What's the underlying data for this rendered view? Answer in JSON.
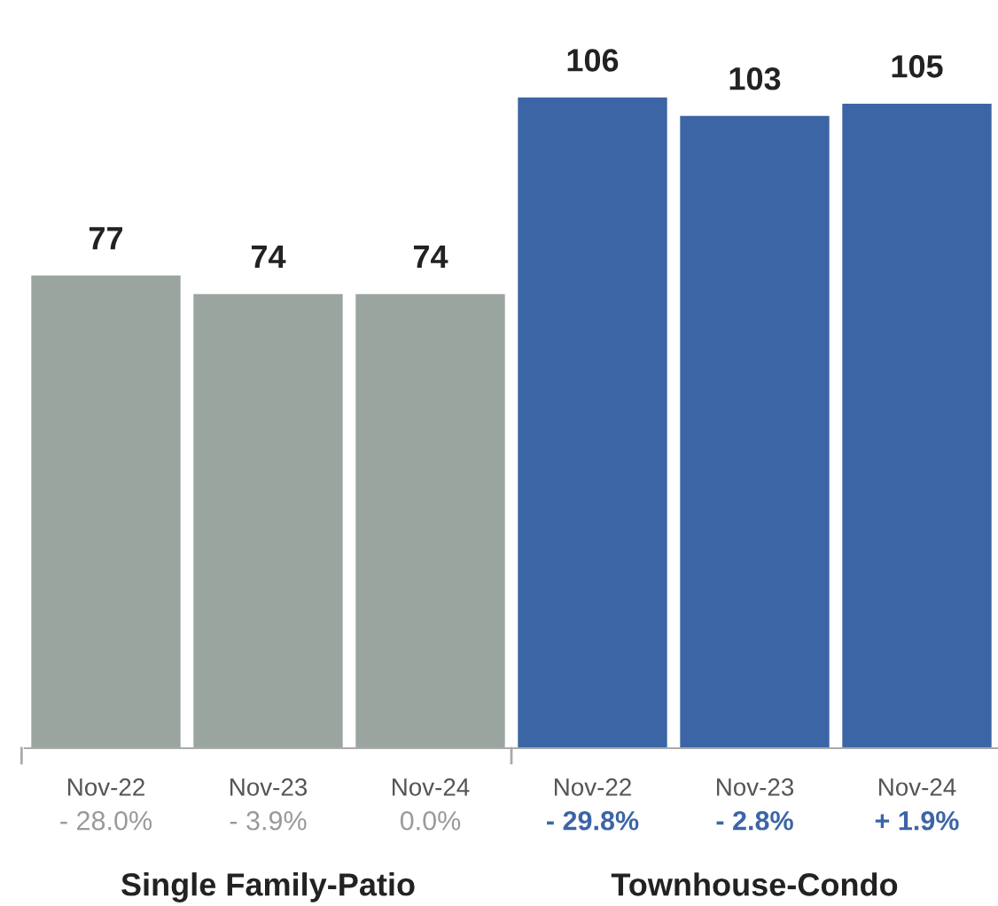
{
  "chart_data": {
    "type": "bar",
    "categories": [
      "Nov-22",
      "Nov-23",
      "Nov-24",
      "Nov-22",
      "Nov-23",
      "Nov-24"
    ],
    "values": [
      77,
      74,
      74,
      106,
      103,
      105
    ],
    "colors": [
      "#9aa59f",
      "#9aa59f",
      "#9aa59f",
      "#3c65a6",
      "#3c65a6",
      "#3c65a6"
    ],
    "data_labels": true,
    "tick_labels": "x",
    "grid": false,
    "legend": false,
    "annotations": [
      "- 28.0%",
      "- 3.9%",
      "0.0%",
      "- 29.8%",
      "- 2.8%",
      "+ 1.9%",
      "Single Family-Patio",
      "Townhouse-Condo"
    ]
  }
}
